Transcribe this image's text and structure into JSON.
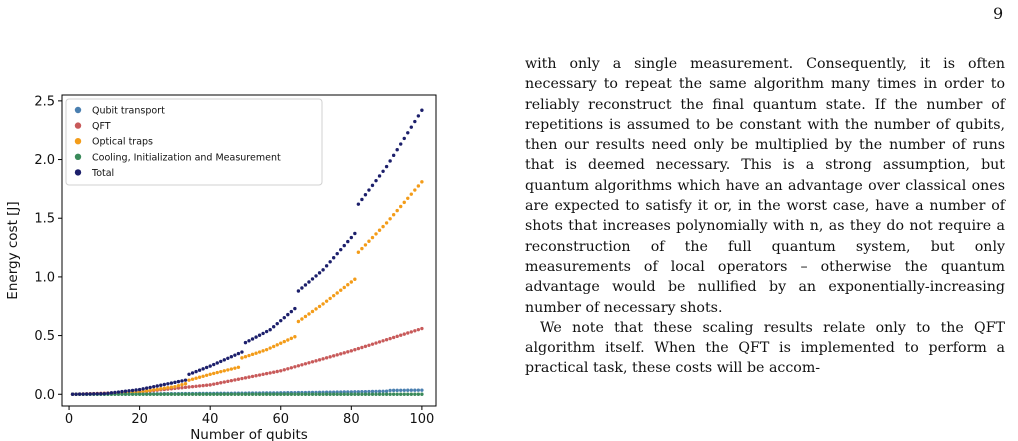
{
  "page": {
    "number": "9"
  },
  "paragraphs": [
    "with only a single measurement. Consequently, it is often necessary to repeat the same algorithm many times in order to reliably reconstruct the final quantum state. If the number of repetitions is assumed to be constant with the number of qubits, then our results need only be multiplied by the number of runs that is deemed necessary. This is a strong assumption, but quantum algorithms which have an advantage over classical ones are expected to satisfy it or, in the worst case, have a number of shots that increases polynomially with n, as they do not require a reconstruction of the full quantum system, but only measurements of local operators – otherwise the quantum advantage would be nullified by an exponentially-increasing number of necessary shots.",
    "We note that these scaling results relate only to the QFT algorithm itself. When the QFT is implemented to perform a practical task, these costs will be accom-"
  ],
  "chart_data": {
    "type": "scatter",
    "xlabel": "Number of qubits",
    "ylabel": "Energy cost [J]",
    "xlim": [
      -2,
      104
    ],
    "ylim": [
      -0.1,
      2.55
    ],
    "xticks": [
      0,
      20,
      40,
      60,
      80,
      100
    ],
    "yticks": [
      0.0,
      0.5,
      1.0,
      1.5,
      2.0,
      2.5
    ],
    "grid": false,
    "legend_position": "top-left",
    "x": {
      "start": 1,
      "end": 100,
      "step": 1
    },
    "series": [
      {
        "name": "Qubit transport",
        "color": "#4a7fb0",
        "points": [
          [
            1,
            0.0
          ],
          [
            20,
            0.003
          ],
          [
            40,
            0.007
          ],
          [
            60,
            0.012
          ],
          [
            80,
            0.02
          ],
          [
            90,
            0.026
          ],
          [
            91,
            0.033
          ],
          [
            100,
            0.035
          ]
        ]
      },
      {
        "name": "QFT",
        "color": "#c85a5a",
        "points": [
          [
            1,
            0.0
          ],
          [
            20,
            0.02
          ],
          [
            40,
            0.08
          ],
          [
            60,
            0.2
          ],
          [
            80,
            0.37
          ],
          [
            100,
            0.56
          ]
        ]
      },
      {
        "name": "Optical traps",
        "color": "#f39c19",
        "points": [
          [
            1,
            0.0
          ],
          [
            10,
            0.004
          ],
          [
            20,
            0.02
          ],
          [
            30,
            0.065
          ],
          [
            33,
            0.09
          ],
          [
            34,
            0.12
          ],
          [
            40,
            0.17
          ],
          [
            48,
            0.23
          ],
          [
            49,
            0.31
          ],
          [
            56,
            0.38
          ],
          [
            64,
            0.49
          ],
          [
            65,
            0.62
          ],
          [
            72,
            0.77
          ],
          [
            81,
            0.98
          ],
          [
            82,
            1.21
          ],
          [
            90,
            1.46
          ],
          [
            100,
            1.81
          ]
        ]
      },
      {
        "name": "Cooling, Initialization and Measurement",
        "color": "#3a8a5a",
        "points": [
          [
            1,
            0.0
          ],
          [
            100,
            0.0
          ]
        ]
      },
      {
        "name": "Total",
        "color": "#1c1f6b",
        "points": [
          [
            1,
            0.0
          ],
          [
            10,
            0.005
          ],
          [
            20,
            0.04
          ],
          [
            33,
            0.12
          ],
          [
            34,
            0.17
          ],
          [
            40,
            0.24
          ],
          [
            49,
            0.36
          ],
          [
            50,
            0.44
          ],
          [
            57,
            0.55
          ],
          [
            64,
            0.73
          ],
          [
            65,
            0.88
          ],
          [
            72,
            1.06
          ],
          [
            81,
            1.37
          ],
          [
            82,
            1.62
          ],
          [
            90,
            1.94
          ],
          [
            100,
            2.42
          ]
        ]
      }
    ]
  }
}
